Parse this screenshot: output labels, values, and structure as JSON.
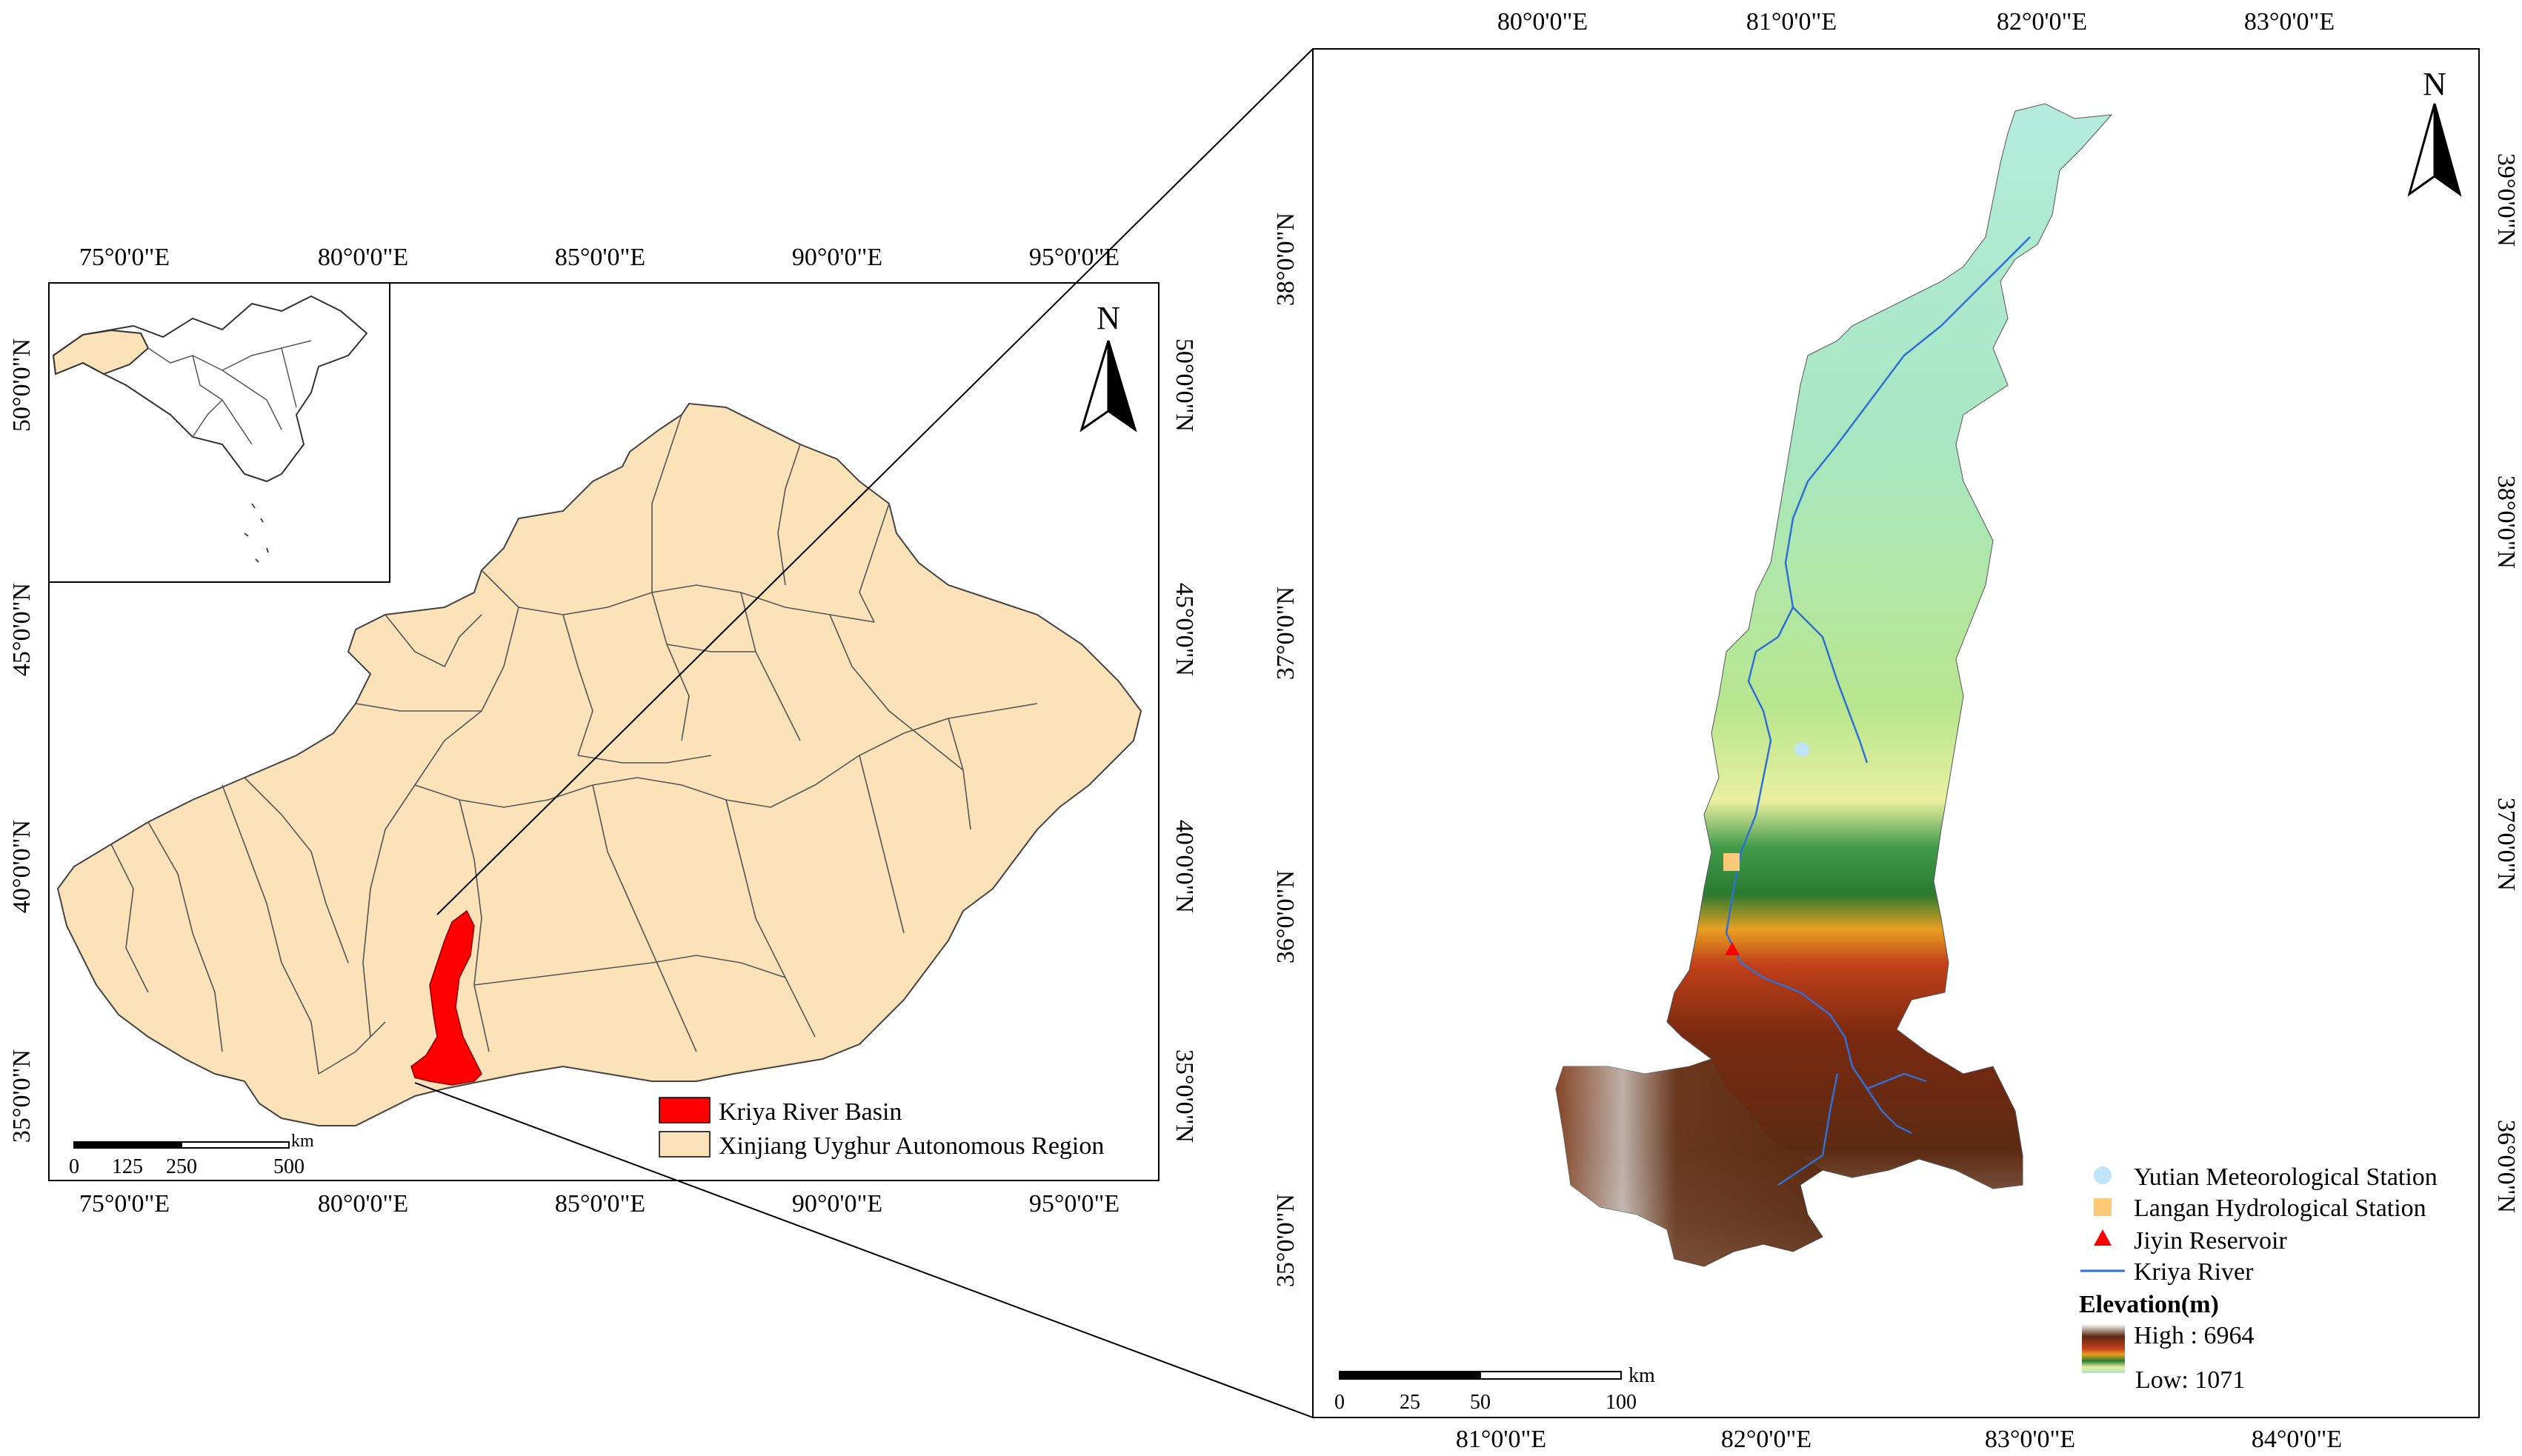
{
  "left_map": {
    "top_lon_labels": [
      "75°0'0\"E",
      "80°0'0\"E",
      "85°0'0\"E",
      "90°0'0\"E",
      "95°0'0\"E"
    ],
    "bottom_lon_labels": [
      "75°0'0\"E",
      "80°0'0\"E",
      "85°0'0\"E",
      "90°0'0\"E",
      "95°0'0\"E"
    ],
    "left_lat_labels": [
      "50°0'0\"N",
      "45°0'0\"N",
      "40°0'0\"N",
      "35°0'0\"N"
    ],
    "right_lat_labels": [
      "50°0'0\"N",
      "45°0'0\"N",
      "40°0'0\"N",
      "35°0'0\"N"
    ],
    "north_letter": "N",
    "scale": {
      "unit": "km",
      "ticks": [
        "0",
        "125",
        "250",
        "500"
      ]
    },
    "legend": [
      {
        "label": "Kriya River Basin",
        "color": "#ff0000"
      },
      {
        "label": "Xinjiang Uyghur Autonomous Region",
        "color": "#fbe2b8"
      }
    ]
  },
  "right_map": {
    "top_lon_labels": [
      "80°0'0\"E",
      "81°0'0\"E",
      "82°0'0\"E",
      "83°0'0\"E"
    ],
    "bottom_lon_labels": [
      "81°0'0\"E",
      "82°0'0\"E",
      "83°0'0\"E",
      "84°0'0\"E"
    ],
    "left_lat_labels": [
      "38°0'0\"N",
      "37°0'0\"N",
      "36°0'0\"N",
      "35°0'0\"N"
    ],
    "right_lat_labels": [
      "39°0'0\"N",
      "38°0'0\"N",
      "37°0'0\"N",
      "36°0'0\"N"
    ],
    "north_letter": "N",
    "scale": {
      "unit": "km",
      "ticks": [
        "0",
        "25",
        "50",
        "100"
      ]
    },
    "legend": {
      "items": [
        {
          "label": "Yutian Meteorological Station",
          "symbol": "circle",
          "color": "#bfe4f7"
        },
        {
          "label": "Langan Hydrological Station",
          "symbol": "square",
          "color": "#fcc978"
        },
        {
          "label": "Jiyin Reservoir",
          "symbol": "triangle",
          "color": "#ff0000"
        },
        {
          "label": "Kriya River",
          "symbol": "line",
          "color": "#2f6fd6"
        }
      ],
      "elevation_title": "Elevation(m)",
      "high_label": "High : 6964",
      "low_label": "Low: 1071"
    }
  },
  "colors": {
    "xinjiang_fill": "#fbe2b8",
    "basin_fill": "#ff0000",
    "river": "#2f6fd6"
  }
}
